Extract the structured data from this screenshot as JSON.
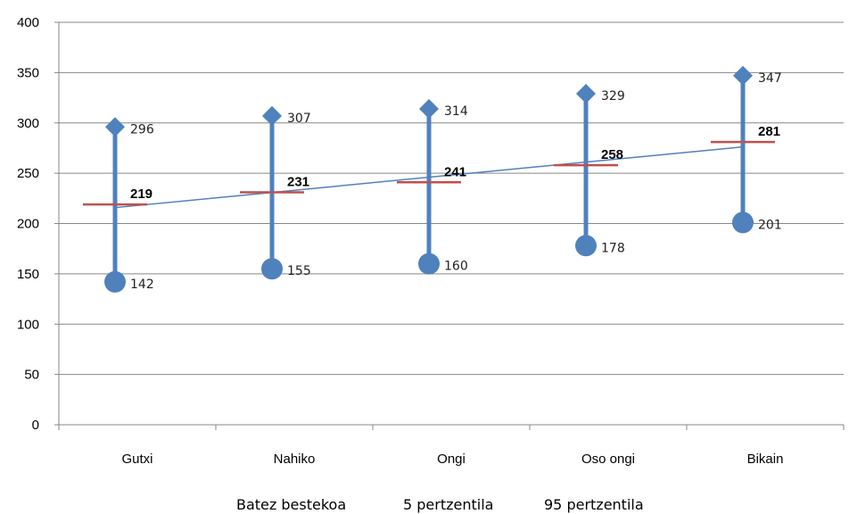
{
  "chart_data": {
    "type": "line",
    "categories": [
      "Gutxi",
      "Nahiko",
      "Ongi",
      "Oso ongi",
      "Bikain"
    ],
    "ylim": [
      0,
      400
    ],
    "yticks": [
      0,
      50,
      100,
      150,
      200,
      250,
      300,
      350,
      400
    ],
    "grid": true,
    "legend_position": "bottom",
    "series": [
      {
        "name": "Batez bestekoa",
        "values": [
          219,
          231,
          241,
          258,
          281
        ],
        "color": "#c0504d"
      },
      {
        "name": "5 pertzentila",
        "values": [
          142,
          155,
          160,
          178,
          201
        ],
        "color": "#4f81bd"
      },
      {
        "name": "95 pertzentila",
        "values": [
          296,
          307,
          314,
          329,
          347
        ],
        "color": "#4f81bd"
      }
    ],
    "trendline": {
      "color": "#4f81bd"
    }
  }
}
